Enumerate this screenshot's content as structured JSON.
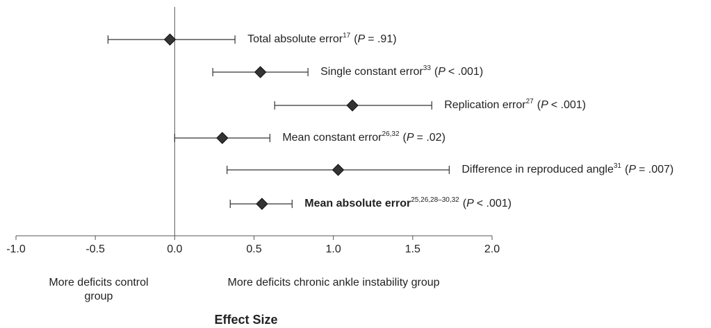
{
  "chart_data": {
    "type": "forest",
    "xlabel": "Effect Size",
    "xlim": [
      -1.0,
      2.0
    ],
    "xticks": [
      {
        "value": -1,
        "label": "-1.0"
      },
      {
        "value": -0.5,
        "label": "-0.5"
      },
      {
        "value": 0,
        "label": "0.0"
      },
      {
        "value": 0.5,
        "label": "0.5"
      },
      {
        "value": 1,
        "label": "1.0"
      },
      {
        "value": 1.5,
        "label": "1.5"
      },
      {
        "value": 2,
        "label": "2.0"
      }
    ],
    "reference_line": 0,
    "marker_color": "#333333",
    "left_group_label": [
      "More deficits control",
      "group"
    ],
    "right_group_label": "More deficits chronic ankle instability group",
    "p_open": "(",
    "p_symbol": "P",
    "rows": [
      {
        "name": "Total absolute error",
        "ref": "17",
        "p": "= .91)",
        "value": -0.03,
        "ci_low": -0.42,
        "ci_high": 0.38,
        "bold": false
      },
      {
        "name": "Single constant error",
        "ref": "33",
        "p": "< .001)",
        "value": 0.54,
        "ci_low": 0.24,
        "ci_high": 0.84,
        "bold": false
      },
      {
        "name": "Replication error",
        "ref": "27",
        "p": "< .001)",
        "value": 1.12,
        "ci_low": 0.63,
        "ci_high": 1.62,
        "bold": false
      },
      {
        "name": "Mean constant error",
        "ref": "26,32",
        "p": "= .02)",
        "value": 0.3,
        "ci_low": 0.0,
        "ci_high": 0.6,
        "bold": false
      },
      {
        "name": "Difference in reproduced angle",
        "ref": "31",
        "p": "= .007)",
        "value": 1.03,
        "ci_low": 0.33,
        "ci_high": 1.73,
        "bold": false
      },
      {
        "name": "Mean absolute error",
        "ref": "25,26,28–30,32",
        "p": "< .001)",
        "value": 0.55,
        "ci_low": 0.35,
        "ci_high": 0.74,
        "bold": true
      }
    ]
  }
}
